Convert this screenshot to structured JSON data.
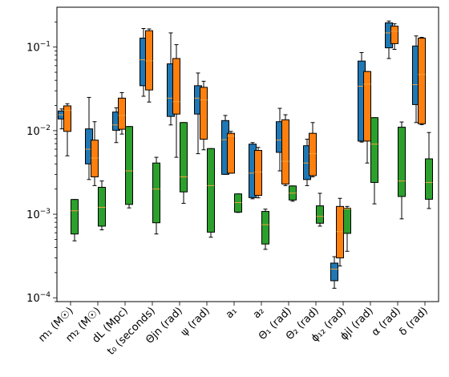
{
  "chart_data": {
    "type": "boxplot",
    "y_scale": "log",
    "ylim": [
      9e-05,
      0.3
    ],
    "y_ticks": [
      {
        "value": 0.0001,
        "base": "10",
        "exp": "−4"
      },
      {
        "value": 0.001,
        "base": "10",
        "exp": "−3"
      },
      {
        "value": 0.01,
        "base": "10",
        "exp": "−2"
      },
      {
        "value": 0.1,
        "base": "10",
        "exp": "−1"
      }
    ],
    "categories": [
      "m₁ (M☉)",
      "m₂ (M☉)",
      "dL (Mpc)",
      "t₀ (seconds)",
      "Θjn (rad)",
      "ψ (rad)",
      "a₁",
      "a₂",
      "Θ₁ (rad)",
      "Θ₂ (rad)",
      "ϕ₁₂ (rad)",
      "ϕjl (rad)",
      "α (rad)",
      "δ (rad)"
    ],
    "series_colors": [
      "#1f77b4",
      "#ff7f0e",
      "#2ca02c"
    ],
    "median_color": "#f2a23a",
    "boxes": [
      [
        {
          "wl": 0.0105,
          "q1": 0.0138,
          "med": 0.0155,
          "q3": 0.0172,
          "wh": 0.0182
        },
        {
          "wl": 0.005,
          "q1": 0.0098,
          "med": 0.0175,
          "q3": 0.0198,
          "wh": 0.021
        },
        {
          "wl": 0.00048,
          "q1": 0.00058,
          "med": 0.0011,
          "q3": 0.0015,
          "wh": 0.0015
        }
      ],
      [
        {
          "wl": 0.0026,
          "q1": 0.004,
          "med": 0.006,
          "q3": 0.0105,
          "wh": 0.025
        },
        {
          "wl": 0.0022,
          "q1": 0.0028,
          "med": 0.0047,
          "q3": 0.0077,
          "wh": 0.0128
        },
        {
          "wl": 0.00065,
          "q1": 0.00072,
          "med": 0.00121,
          "q3": 0.0021,
          "wh": 0.0025
        }
      ],
      [
        {
          "wl": 0.0072,
          "q1": 0.0101,
          "med": 0.0117,
          "q3": 0.0167,
          "wh": 0.0188
        },
        {
          "wl": 0.0091,
          "q1": 0.0104,
          "med": 0.0152,
          "q3": 0.0245,
          "wh": 0.0285
        },
        {
          "wl": 0.00119,
          "q1": 0.00131,
          "med": 0.0033,
          "q3": 0.0112,
          "wh": 0.0112
        }
      ],
      [
        {
          "wl": 0.0258,
          "q1": 0.0345,
          "med": 0.0705,
          "q3": 0.128,
          "wh": 0.167
        },
        {
          "wl": 0.022,
          "q1": 0.0307,
          "med": 0.0685,
          "q3": 0.157,
          "wh": 0.165
        },
        {
          "wl": 0.00058,
          "q1": 0.00079,
          "med": 0.002,
          "q3": 0.0041,
          "wh": 0.0048
        }
      ],
      [
        {
          "wl": 0.0117,
          "q1": 0.0148,
          "med": 0.0245,
          "q3": 0.063,
          "wh": 0.148
        },
        {
          "wl": 0.0048,
          "q1": 0.0158,
          "med": 0.0222,
          "q3": 0.073,
          "wh": 0.107
        },
        {
          "wl": 0.00135,
          "q1": 0.00185,
          "med": 0.0028,
          "q3": 0.0125,
          "wh": 0.0125
        }
      ],
      [
        {
          "wl": 0.0053,
          "q1": 0.0158,
          "med": 0.0245,
          "q3": 0.0345,
          "wh": 0.049
        },
        {
          "wl": 0.0059,
          "q1": 0.0079,
          "med": 0.0233,
          "q3": 0.033,
          "wh": 0.039
        },
        {
          "wl": 0.00053,
          "q1": 0.00061,
          "med": 0.0022,
          "q3": 0.0061,
          "wh": 0.0061
        }
      ],
      [
        {
          "wl": 0.003,
          "q1": 0.003,
          "med": 0.0078,
          "q3": 0.0132,
          "wh": 0.0152
        },
        {
          "wl": 0.0031,
          "q1": 0.0031,
          "med": 0.0086,
          "q3": 0.0093,
          "wh": 0.0098
        },
        {
          "wl": 0.00105,
          "q1": 0.00106,
          "med": 0.00138,
          "q3": 0.00175,
          "wh": 0.00175
        }
      ],
      [
        {
          "wl": 0.00153,
          "q1": 0.00158,
          "med": 0.0031,
          "q3": 0.0069,
          "wh": 0.0072
        },
        {
          "wl": 0.00157,
          "q1": 0.00168,
          "med": 0.0032,
          "q3": 0.0058,
          "wh": 0.0063
        },
        {
          "wl": 0.00038,
          "q1": 0.00044,
          "med": 0.00075,
          "q3": 0.00108,
          "wh": 0.00115
        }
      ],
      [
        {
          "wl": 0.0033,
          "q1": 0.0055,
          "med": 0.0077,
          "q3": 0.0128,
          "wh": 0.0185
        },
        {
          "wl": 0.0022,
          "q1": 0.0023,
          "med": 0.0043,
          "q3": 0.0135,
          "wh": 0.0155
        },
        {
          "wl": 0.00143,
          "q1": 0.00148,
          "med": 0.00179,
          "q3": 0.00218,
          "wh": 0.00218
        }
      ],
      [
        {
          "wl": 0.0022,
          "q1": 0.0026,
          "med": 0.0041,
          "q3": 0.0066,
          "wh": 0.0079
        },
        {
          "wl": 0.0028,
          "q1": 0.0029,
          "med": 0.0053,
          "q3": 0.0093,
          "wh": 0.0125
        },
        {
          "wl": 0.00072,
          "q1": 0.00078,
          "med": 0.00094,
          "q3": 0.00126,
          "wh": 0.00178
        }
      ],
      [
        {
          "wl": 0.00013,
          "q1": 0.00016,
          "med": 0.00022,
          "q3": 0.00026,
          "wh": 0.00031
        },
        {
          "wl": 0.00024,
          "q1": 0.0003,
          "med": 0.00062,
          "q3": 0.00124,
          "wh": 0.00155
        },
        {
          "wl": 0.00036,
          "q1": 0.00059,
          "med": 0.00116,
          "q3": 0.00118,
          "wh": 0.00124
        }
      ],
      [
        {
          "wl": 0.0073,
          "q1": 0.0075,
          "med": 0.034,
          "q3": 0.068,
          "wh": 0.086
        },
        {
          "wl": 0.0041,
          "q1": 0.0075,
          "med": 0.036,
          "q3": 0.051,
          "wh": 0.051
        },
        {
          "wl": 0.00133,
          "q1": 0.0024,
          "med": 0.0069,
          "q3": 0.0143,
          "wh": 0.0143
        }
      ],
      [
        {
          "wl": 0.073,
          "q1": 0.098,
          "med": 0.148,
          "q3": 0.195,
          "wh": 0.205
        },
        {
          "wl": 0.094,
          "q1": 0.11,
          "med": 0.155,
          "q3": 0.178,
          "wh": 0.19
        },
        {
          "wl": 0.00088,
          "q1": 0.00163,
          "med": 0.0025,
          "q3": 0.011,
          "wh": 0.0127
        }
      ],
      [
        {
          "wl": 0.0125,
          "q1": 0.0205,
          "med": 0.0355,
          "q3": 0.103,
          "wh": 0.136
        },
        {
          "wl": 0.0118,
          "q1": 0.0121,
          "med": 0.047,
          "q3": 0.128,
          "wh": 0.131
        },
        {
          "wl": 0.00117,
          "q1": 0.00151,
          "med": 0.0024,
          "q3": 0.0046,
          "wh": 0.0095
        }
      ]
    ]
  }
}
